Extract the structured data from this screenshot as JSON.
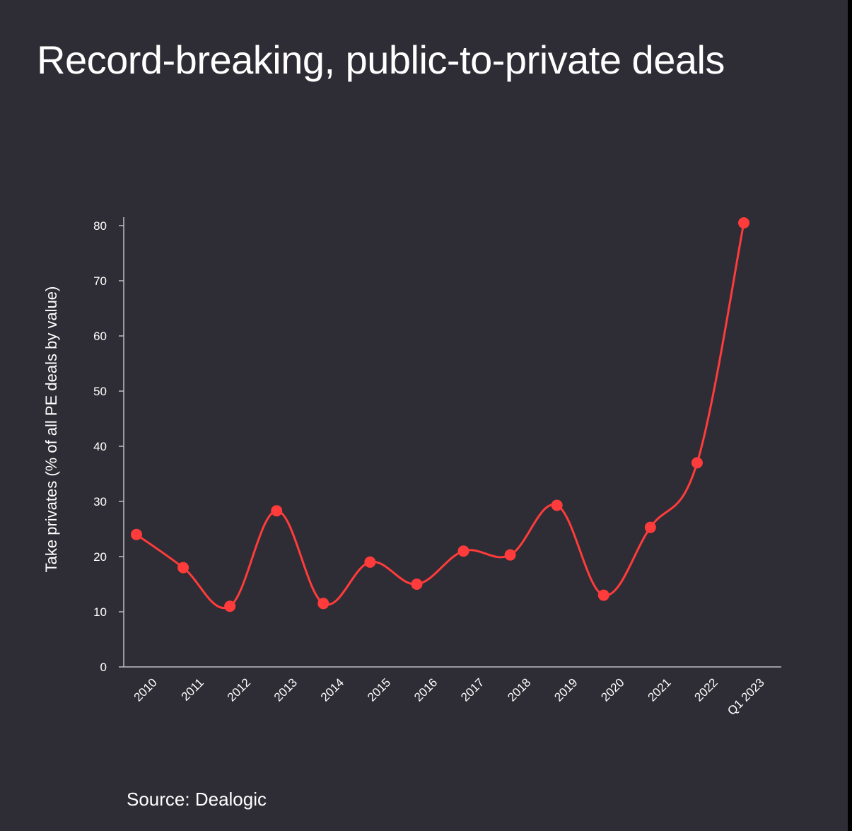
{
  "title": "Record-breaking, public-to-private deals",
  "source": "Source: Dealogic",
  "colors": {
    "background": "#2e2d35",
    "line": "#ff3b3b",
    "axis": "#bdbdc3",
    "text": "#ffffff"
  },
  "chart_data": {
    "type": "line",
    "title": "Record-breaking, public-to-private deals",
    "xlabel": "",
    "ylabel": "Take privates (% of all PE deals by value)",
    "categories": [
      "2010",
      "2011",
      "2012",
      "2013",
      "2014",
      "2015",
      "2016",
      "2017",
      "2018",
      "2019",
      "2020",
      "2021",
      "2022",
      "Q1 2023"
    ],
    "values": [
      24,
      18,
      11,
      28.3,
      11.5,
      19,
      15,
      21,
      20.3,
      29.3,
      13,
      25.3,
      37,
      80.5
    ],
    "ylim": [
      0,
      80
    ],
    "yticks": [
      0,
      10,
      20,
      30,
      40,
      50,
      60,
      70,
      80
    ],
    "grid": false,
    "legend": "none",
    "curve": "smooth",
    "markers": true
  }
}
